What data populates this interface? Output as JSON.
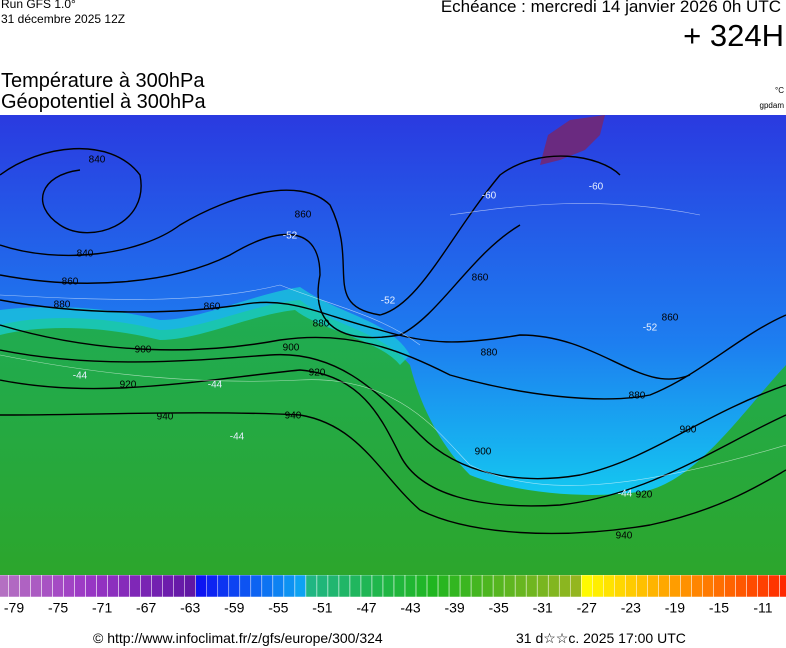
{
  "header": {
    "run": "Run GFS 1.0°",
    "run_date": "31 décembre 2025 12Z",
    "valid": "Echéance : mercredi 14 janvier 2026 0h UTC",
    "lead": "+ 324H",
    "title_temperature": "Température à 300hPa",
    "title_geopotential": "Géopotentiel à 300hPa",
    "unit_temperature": "°C",
    "unit_geopotential": "gpdam"
  },
  "map": {
    "geopotential_labels": [
      840,
      840,
      860,
      880,
      900,
      920,
      940,
      860,
      880,
      900,
      920,
      940,
      860,
      860,
      880,
      880,
      900,
      900,
      920,
      940,
      860
    ],
    "temperature_labels": [
      -60,
      -60,
      -52,
      -52,
      -52,
      -44,
      -44,
      -44,
      -44
    ]
  },
  "colorbar": {
    "ticks": [
      -79,
      -75,
      -71,
      -67,
      -63,
      -59,
      -55,
      -51,
      -47,
      -43,
      -39,
      -35,
      -31,
      -27,
      -23,
      -19,
      -15,
      -11
    ]
  },
  "footer": {
    "source": "© http://www.infoclimat.fr/z/gfs/europe/300/324",
    "generated": "31 d☆☆c. 2025 17:00 UTC"
  }
}
